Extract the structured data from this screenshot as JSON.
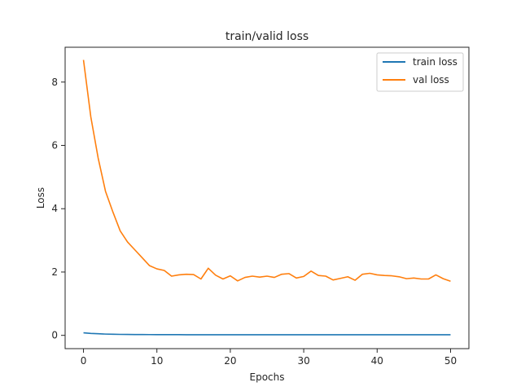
{
  "chart_data": {
    "type": "line",
    "title": "train/valid loss",
    "xlabel": "Epochs",
    "ylabel": "Loss",
    "xlim": [
      -2.5,
      52.5
    ],
    "ylim": [
      -0.42,
      9.1
    ],
    "xticks": [
      0,
      10,
      20,
      30,
      40,
      50
    ],
    "yticks": [
      0,
      2,
      4,
      6,
      8
    ],
    "grid": false,
    "legend_position": "top-right",
    "x": [
      0,
      1,
      2,
      3,
      4,
      5,
      6,
      7,
      8,
      9,
      10,
      11,
      12,
      13,
      14,
      15,
      16,
      17,
      18,
      19,
      20,
      21,
      22,
      23,
      24,
      25,
      26,
      27,
      28,
      29,
      30,
      31,
      32,
      33,
      34,
      35,
      36,
      37,
      38,
      39,
      40,
      41,
      42,
      43,
      44,
      45,
      46,
      47,
      48,
      49,
      50
    ],
    "series": [
      {
        "name": "train loss",
        "color": "#1f77b4",
        "values": [
          0.08,
          0.06,
          0.05,
          0.04,
          0.035,
          0.03,
          0.028,
          0.026,
          0.025,
          0.024,
          0.023,
          0.022,
          0.021,
          0.021,
          0.02,
          0.02,
          0.02,
          0.02,
          0.02,
          0.02,
          0.02,
          0.02,
          0.02,
          0.02,
          0.02,
          0.02,
          0.02,
          0.02,
          0.02,
          0.02,
          0.02,
          0.02,
          0.02,
          0.02,
          0.02,
          0.02,
          0.02,
          0.02,
          0.02,
          0.02,
          0.02,
          0.02,
          0.02,
          0.02,
          0.02,
          0.02,
          0.02,
          0.02,
          0.02,
          0.02,
          0.02
        ]
      },
      {
        "name": "val loss",
        "color": "#ff7f0e",
        "values": [
          8.7,
          6.9,
          5.6,
          4.55,
          3.9,
          3.3,
          2.95,
          2.7,
          2.45,
          2.2,
          2.1,
          2.05,
          1.87,
          1.91,
          1.93,
          1.92,
          1.78,
          2.12,
          1.9,
          1.78,
          1.88,
          1.72,
          1.83,
          1.87,
          1.84,
          1.87,
          1.83,
          1.93,
          1.95,
          1.81,
          1.86,
          2.03,
          1.89,
          1.87,
          1.75,
          1.8,
          1.85,
          1.74,
          1.93,
          1.96,
          1.91,
          1.89,
          1.88,
          1.85,
          1.79,
          1.81,
          1.78,
          1.78,
          1.91,
          1.79,
          1.71
        ]
      }
    ]
  }
}
